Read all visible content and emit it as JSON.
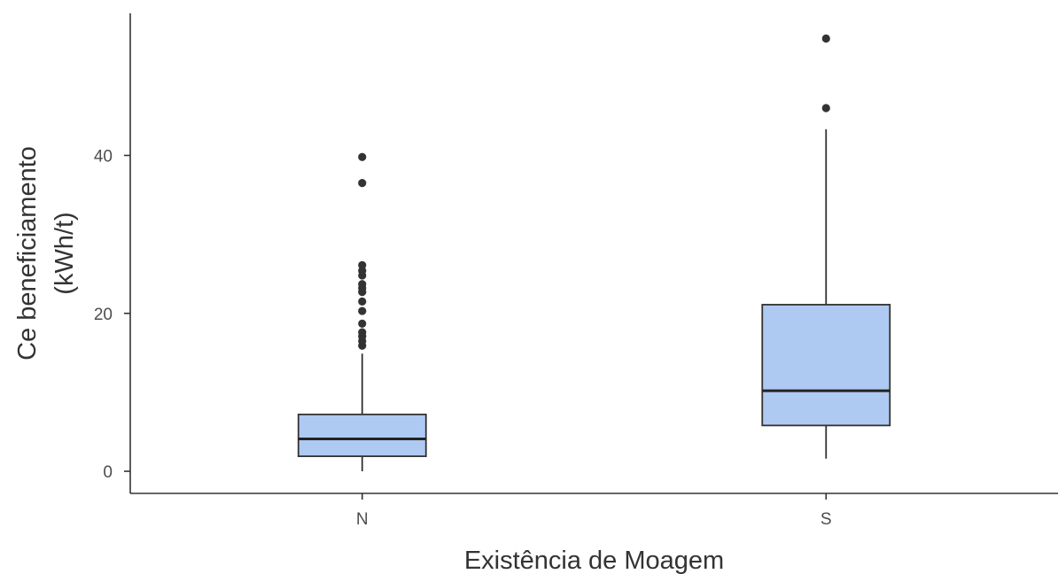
{
  "chart_data": {
    "type": "boxplot",
    "xlabel": "Existência de Moagem",
    "ylabel_lines": [
      "Ce beneficiamento",
      "(kWh/t)"
    ],
    "ylim": [
      -2.8,
      58
    ],
    "yticks": [
      0,
      20,
      40
    ],
    "grid": false,
    "fill_color": "#aec9f2",
    "categories": [
      "N",
      "S"
    ],
    "boxes": [
      {
        "category": "N",
        "whisker_low": 0.0,
        "q1": 1.9,
        "median": 4.1,
        "q3": 7.2,
        "whisker_high": 14.9,
        "outliers": [
          15.9,
          16.5,
          17.1,
          17.6,
          18.7,
          20.3,
          21.5,
          22.7,
          23.2,
          23.7,
          24.8,
          25.4,
          26.1,
          36.5,
          39.8
        ]
      },
      {
        "category": "S",
        "whisker_low": 1.6,
        "q1": 5.8,
        "median": 10.2,
        "q3": 21.1,
        "whisker_high": 43.3,
        "outliers": [
          46.0,
          54.8
        ]
      }
    ]
  }
}
